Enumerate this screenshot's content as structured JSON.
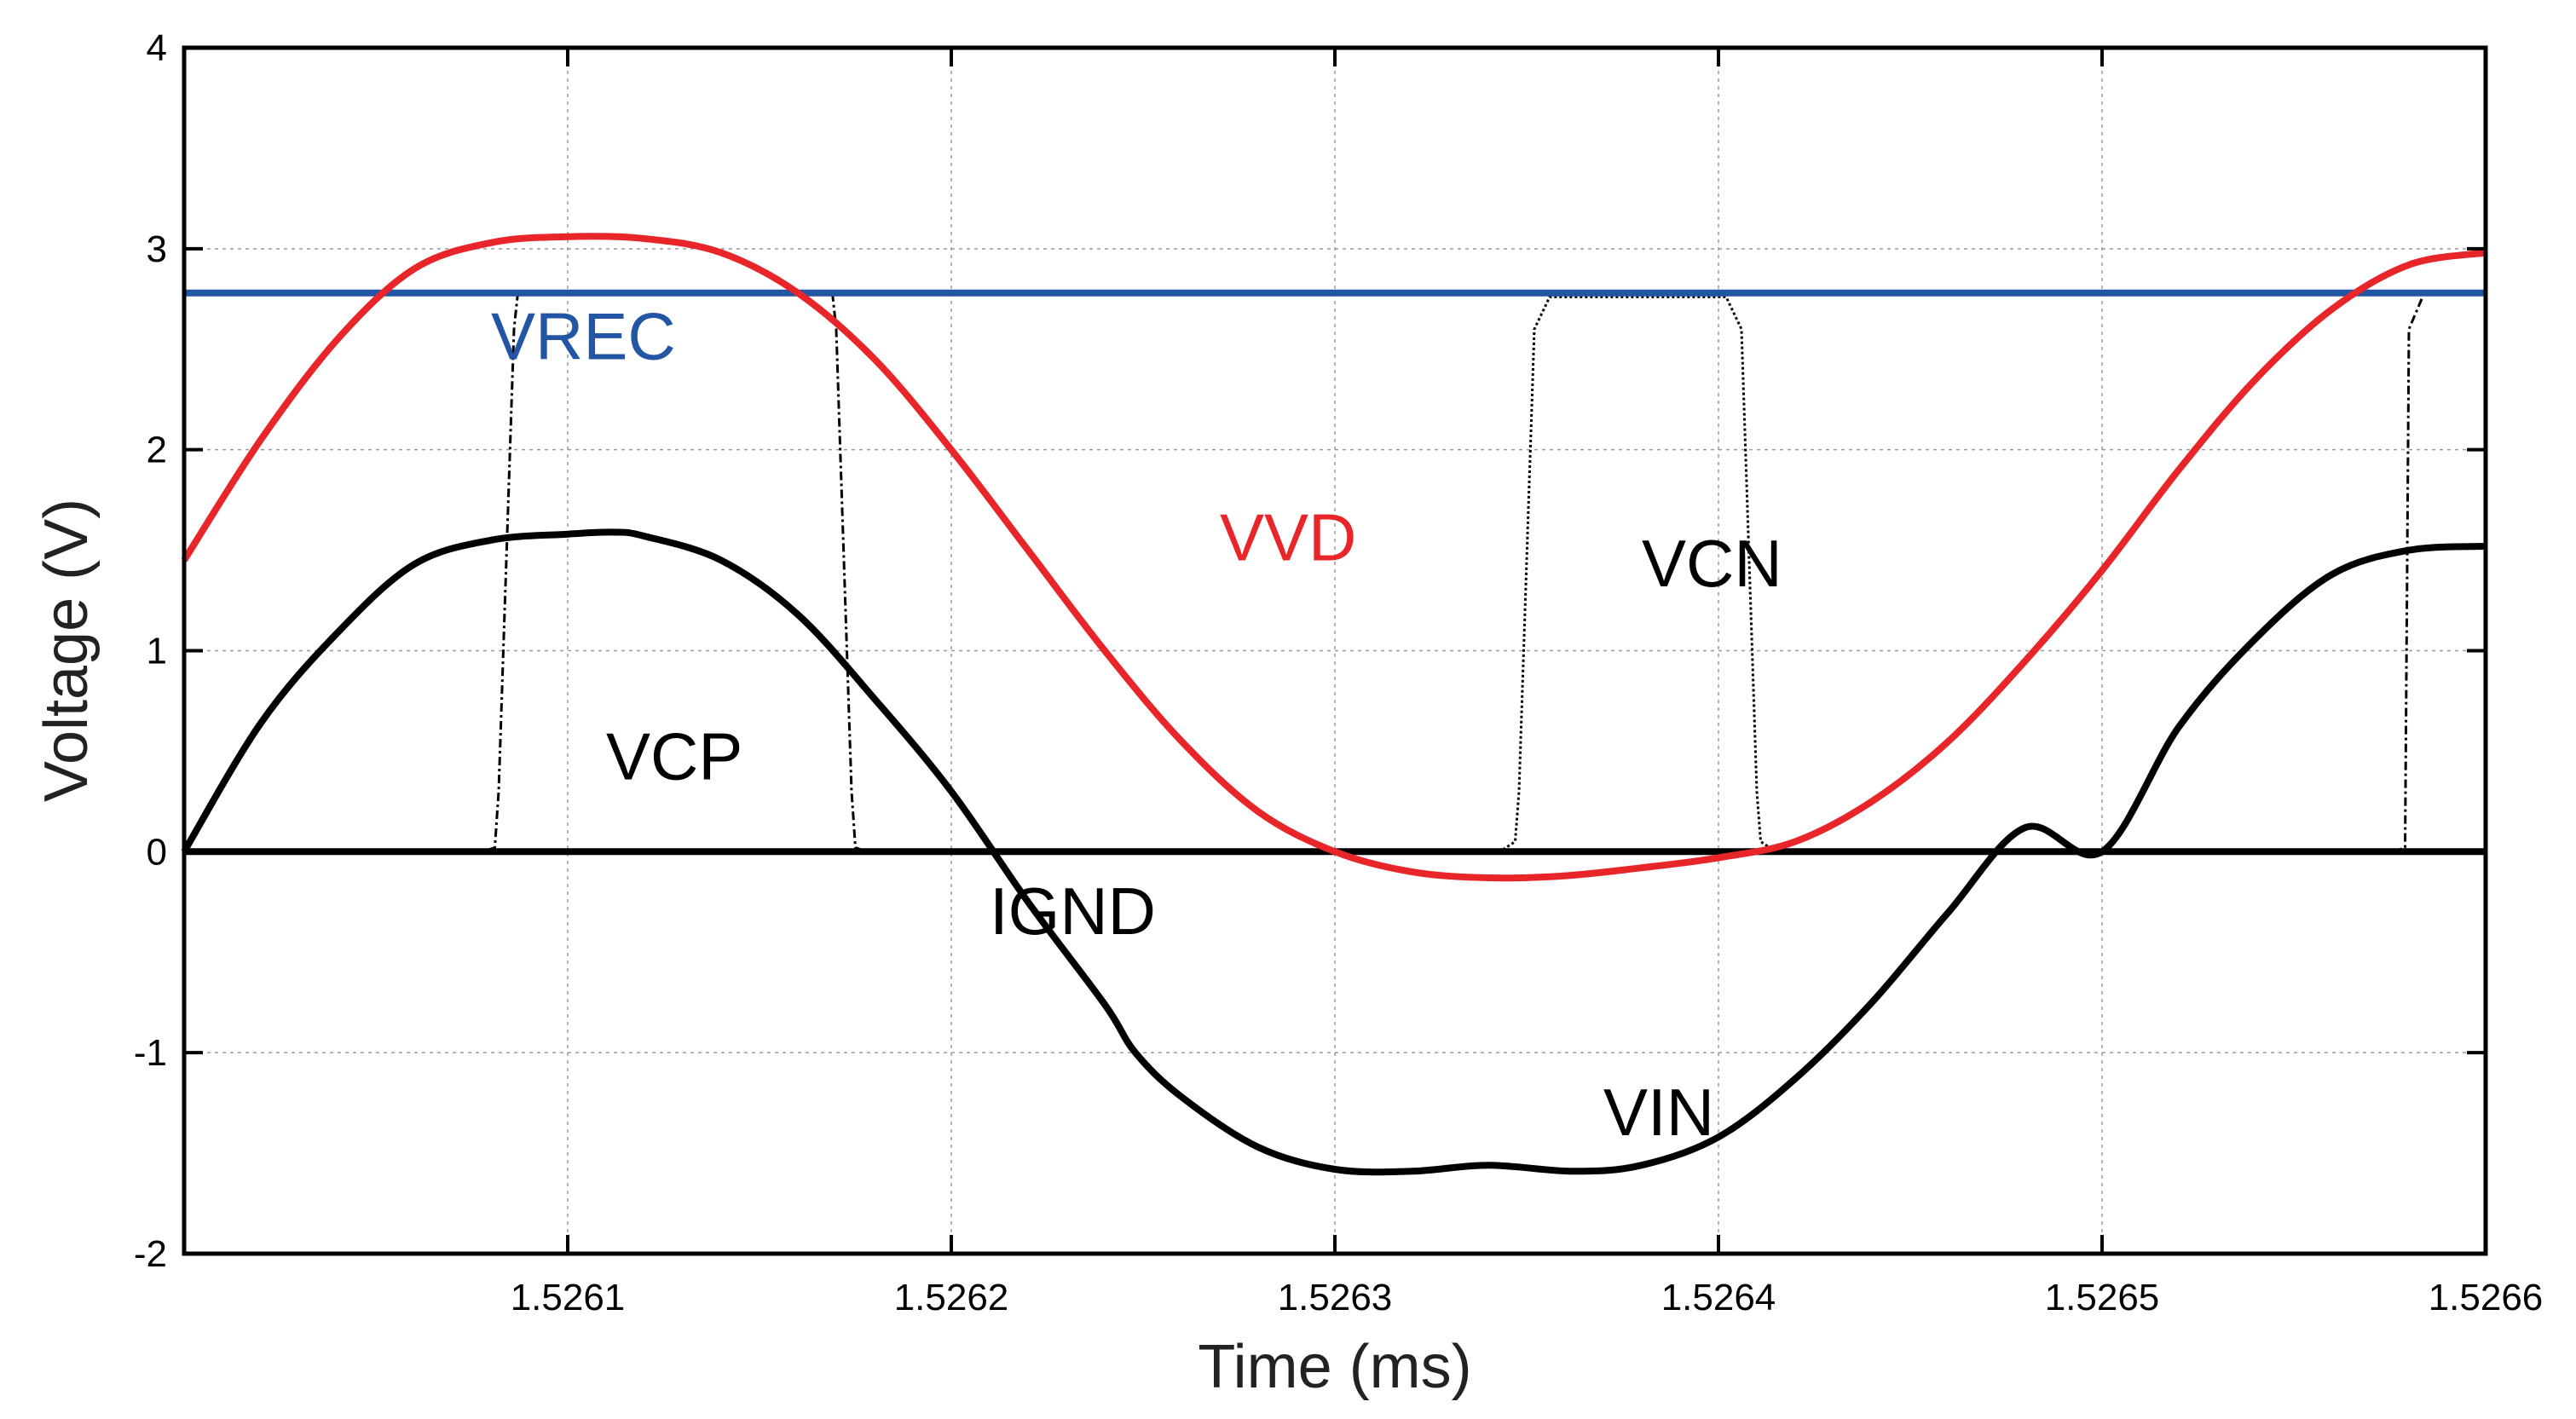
{
  "chart_data": {
    "type": "line",
    "title": "",
    "xlabel": "Time (ms)",
    "ylabel": "Voltage (V)",
    "xlim": [
      1.526,
      1.5266
    ],
    "ylim": [
      -2,
      4
    ],
    "grid": true,
    "x_ticks": [
      1.5261,
      1.5262,
      1.5263,
      1.5264,
      1.5265,
      1.5266
    ],
    "x_tick_labels": [
      "1.5261",
      "1.5262",
      "1.5263",
      "1.5264",
      "1.5265",
      "1.5266"
    ],
    "y_ticks": [
      -2,
      -1,
      0,
      1,
      2,
      3,
      4
    ],
    "y_tick_labels": [
      "-2",
      "-1",
      "0",
      "1",
      "2",
      "3",
      "4"
    ],
    "colors": {
      "VREC": "#2255a4",
      "VVD": "#e8262a",
      "VIN": "#000000",
      "IGND": "#000000",
      "VCP": "#000000",
      "VCN": "#000000"
    },
    "series": [
      {
        "name": "VREC",
        "style": "solid",
        "x": [
          1.526,
          1.5266
        ],
        "y": [
          2.78,
          2.78
        ]
      },
      {
        "name": "IGND",
        "style": "solid",
        "x": [
          1.526,
          1.5266
        ],
        "y": [
          0,
          0
        ]
      },
      {
        "name": "VIN",
        "style": "solid",
        "x": [
          1.526,
          1.52602,
          1.52604,
          1.52606,
          1.52608,
          1.5261,
          1.526112,
          1.52612,
          1.52614,
          1.52616,
          1.52618,
          1.5262,
          1.52622,
          1.52624,
          1.526248,
          1.52626,
          1.52628,
          1.5263,
          1.52632,
          1.52634,
          1.526362,
          1.52638,
          1.5264,
          1.52642,
          1.52644,
          1.52646,
          1.52648,
          1.5265,
          1.52652,
          1.52654,
          1.52656,
          1.52658,
          1.5266
        ],
        "y": [
          0.0,
          0.64,
          1.09,
          1.43,
          1.55,
          1.58,
          1.59,
          1.57,
          1.45,
          1.18,
          0.76,
          0.3,
          -0.25,
          -0.76,
          -1.0,
          -1.22,
          -1.47,
          -1.58,
          -1.59,
          -1.56,
          -1.59,
          -1.56,
          -1.42,
          -1.13,
          -0.75,
          -0.3,
          0.12,
          0.0,
          0.62,
          1.06,
          1.38,
          1.5,
          1.52
        ]
      },
      {
        "name": "VVD",
        "style": "solid",
        "x": [
          1.526,
          1.52602,
          1.52604,
          1.52606,
          1.52608,
          1.5261,
          1.52612,
          1.52614,
          1.52616,
          1.52618,
          1.5262,
          1.52622,
          1.52624,
          1.52626,
          1.52628,
          1.5263,
          1.52632,
          1.52634,
          1.52636,
          1.52638,
          1.5264,
          1.52642,
          1.52644,
          1.52646,
          1.52648,
          1.5265,
          1.52652,
          1.52654,
          1.52656,
          1.52658,
          1.5266
        ],
        "y": [
          1.45,
          2.05,
          2.55,
          2.9,
          3.03,
          3.06,
          3.05,
          2.98,
          2.78,
          2.45,
          2.0,
          1.5,
          1.0,
          0.55,
          0.2,
          0.0,
          -0.1,
          -0.13,
          -0.12,
          -0.08,
          -0.03,
          0.05,
          0.25,
          0.55,
          0.95,
          1.4,
          1.9,
          2.35,
          2.7,
          2.92,
          2.98
        ]
      },
      {
        "name": "VCP",
        "style": "dashdot",
        "x": [
          1.526,
          1.526078,
          1.526081,
          1.526082,
          1.526086,
          1.526087,
          1.526169,
          1.52617,
          1.526174,
          1.526175,
          1.526178,
          1.526576,
          1.526579,
          1.52658,
          1.526584,
          1.526585
        ],
        "y": [
          0,
          0,
          0.02,
          0.3,
          2.6,
          2.78,
          2.78,
          2.6,
          0.3,
          0.02,
          0,
          0,
          0.02,
          2.6,
          2.78,
          2.78
        ]
      },
      {
        "name": "VCN",
        "style": "dotted",
        "x": [
          1.526,
          1.526343,
          1.526347,
          1.526348,
          1.526352,
          1.526356,
          1.526402,
          1.526406,
          1.52641,
          1.526411,
          1.526415,
          1.5266
        ],
        "y": [
          0,
          0,
          0.05,
          0.3,
          2.6,
          2.76,
          2.76,
          2.6,
          0.3,
          0.05,
          0,
          0
        ]
      }
    ],
    "annotations": [
      {
        "text": "VREC",
        "x": 1.52608,
        "y": 2.45,
        "color": "#2255a4"
      },
      {
        "text": "VVD",
        "x": 1.52627,
        "y": 1.45,
        "color": "#e8262a"
      },
      {
        "text": "VCN",
        "x": 1.52638,
        "y": 1.32,
        "color": "#000000"
      },
      {
        "text": "VCP",
        "x": 1.52611,
        "y": 0.36,
        "color": "#000000"
      },
      {
        "text": "IGND",
        "x": 1.52621,
        "y": -0.41,
        "color": "#000000"
      },
      {
        "text": "VIN",
        "x": 1.52637,
        "y": -1.41,
        "color": "#000000"
      }
    ]
  }
}
